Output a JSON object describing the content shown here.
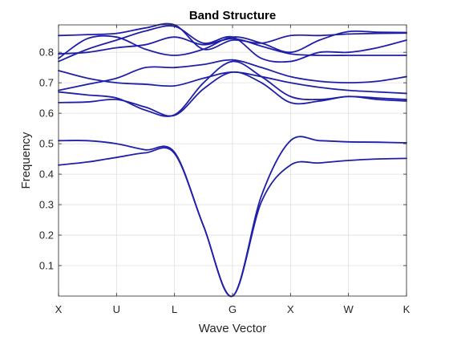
{
  "chart_data": {
    "type": "line",
    "title": "Band Structure",
    "xlabel": "Wave Vector",
    "ylabel": "Frequency",
    "x_tick_labels": [
      "X",
      "U",
      "L",
      "G",
      "X",
      "W",
      "K"
    ],
    "x": [
      0,
      0.5,
      1,
      1.5,
      2,
      2.5,
      3,
      3.5,
      4,
      4.5,
      5,
      5.5,
      6
    ],
    "ylim": [
      0,
      0.89
    ],
    "y_ticks": [
      0.1,
      0.2,
      0.3,
      0.4,
      0.5,
      0.6,
      0.7,
      0.8
    ],
    "grid": true,
    "line_color": "#1f1fa8",
    "series": [
      {
        "values": [
          0.43,
          0.44,
          0.455,
          0.47,
          0.468,
          0.23,
          0.0,
          0.31,
          0.43,
          0.437,
          0.445,
          0.45,
          0.452
        ]
      },
      {
        "values": [
          0.51,
          0.51,
          0.5,
          0.48,
          0.472,
          0.23,
          0.0,
          0.33,
          0.51,
          0.51,
          0.506,
          0.505,
          0.503
        ]
      },
      {
        "values": [
          0.635,
          0.637,
          0.645,
          0.62,
          0.593,
          0.68,
          0.735,
          0.7,
          0.635,
          0.64,
          0.655,
          0.645,
          0.64
        ]
      },
      {
        "values": [
          0.67,
          0.66,
          0.65,
          0.61,
          0.595,
          0.7,
          0.77,
          0.72,
          0.655,
          0.645,
          0.655,
          0.65,
          0.645
        ]
      },
      {
        "values": [
          0.675,
          0.695,
          0.715,
          0.75,
          0.75,
          0.76,
          0.775,
          0.75,
          0.72,
          0.705,
          0.7,
          0.705,
          0.72
        ]
      },
      {
        "values": [
          0.74,
          0.715,
          0.7,
          0.695,
          0.69,
          0.715,
          0.735,
          0.72,
          0.7,
          0.685,
          0.675,
          0.67,
          0.665
        ]
      },
      {
        "values": [
          0.77,
          0.81,
          0.84,
          0.87,
          0.885,
          0.83,
          0.85,
          0.78,
          0.77,
          0.8,
          0.8,
          0.815,
          0.84
        ]
      },
      {
        "values": [
          0.795,
          0.8,
          0.815,
          0.825,
          0.85,
          0.825,
          0.845,
          0.82,
          0.795,
          0.79,
          0.79,
          0.79,
          0.79
        ]
      },
      {
        "values": [
          0.855,
          0.858,
          0.862,
          0.88,
          0.89,
          0.81,
          0.84,
          0.83,
          0.855,
          0.855,
          0.86,
          0.862,
          0.863
        ]
      },
      {
        "values": [
          0.78,
          0.845,
          0.85,
          0.81,
          0.79,
          0.81,
          0.85,
          0.83,
          0.8,
          0.84,
          0.868,
          0.866,
          0.865
        ]
      }
    ]
  }
}
